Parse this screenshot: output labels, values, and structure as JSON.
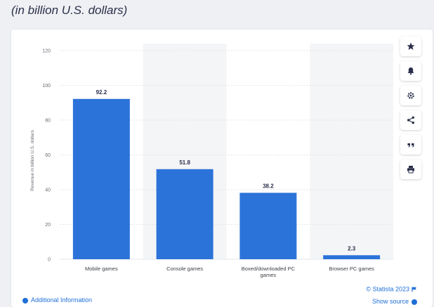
{
  "header": {
    "subtitle": "(in billion U.S. dollars)"
  },
  "chart_data": {
    "type": "bar",
    "categories": [
      "Mobile games",
      "Console games",
      "Boxed/downloaded PC games",
      "Browser PC games"
    ],
    "category_lines": [
      [
        "Mobile games"
      ],
      [
        "Console games"
      ],
      [
        "Boxed/downloaded PC",
        "games"
      ],
      [
        "Browser PC games"
      ]
    ],
    "values": [
      92.2,
      51.8,
      38.2,
      2.3
    ],
    "value_labels": [
      "92.2",
      "51.8",
      "38.2",
      "2.3"
    ],
    "ylabel": "Revenue in billion U.S. dollars",
    "ylim": [
      0,
      120
    ],
    "yticks": [
      0,
      20,
      40,
      60,
      80,
      100,
      120
    ],
    "grid": true,
    "bar_color": "#2c73d9",
    "alt_band_color": "#f4f5f7"
  },
  "credit": {
    "text": "© Statista 2023"
  },
  "footer": {
    "additional_info": "Additional Information",
    "show_source": "Show source"
  },
  "toolbar": {
    "icons": [
      "star-icon",
      "bell-icon",
      "gear-icon",
      "share-icon",
      "quote-icon",
      "print-icon"
    ]
  },
  "colors": {
    "accent": "#1f6fd6",
    "title": "#2b2f4a"
  }
}
